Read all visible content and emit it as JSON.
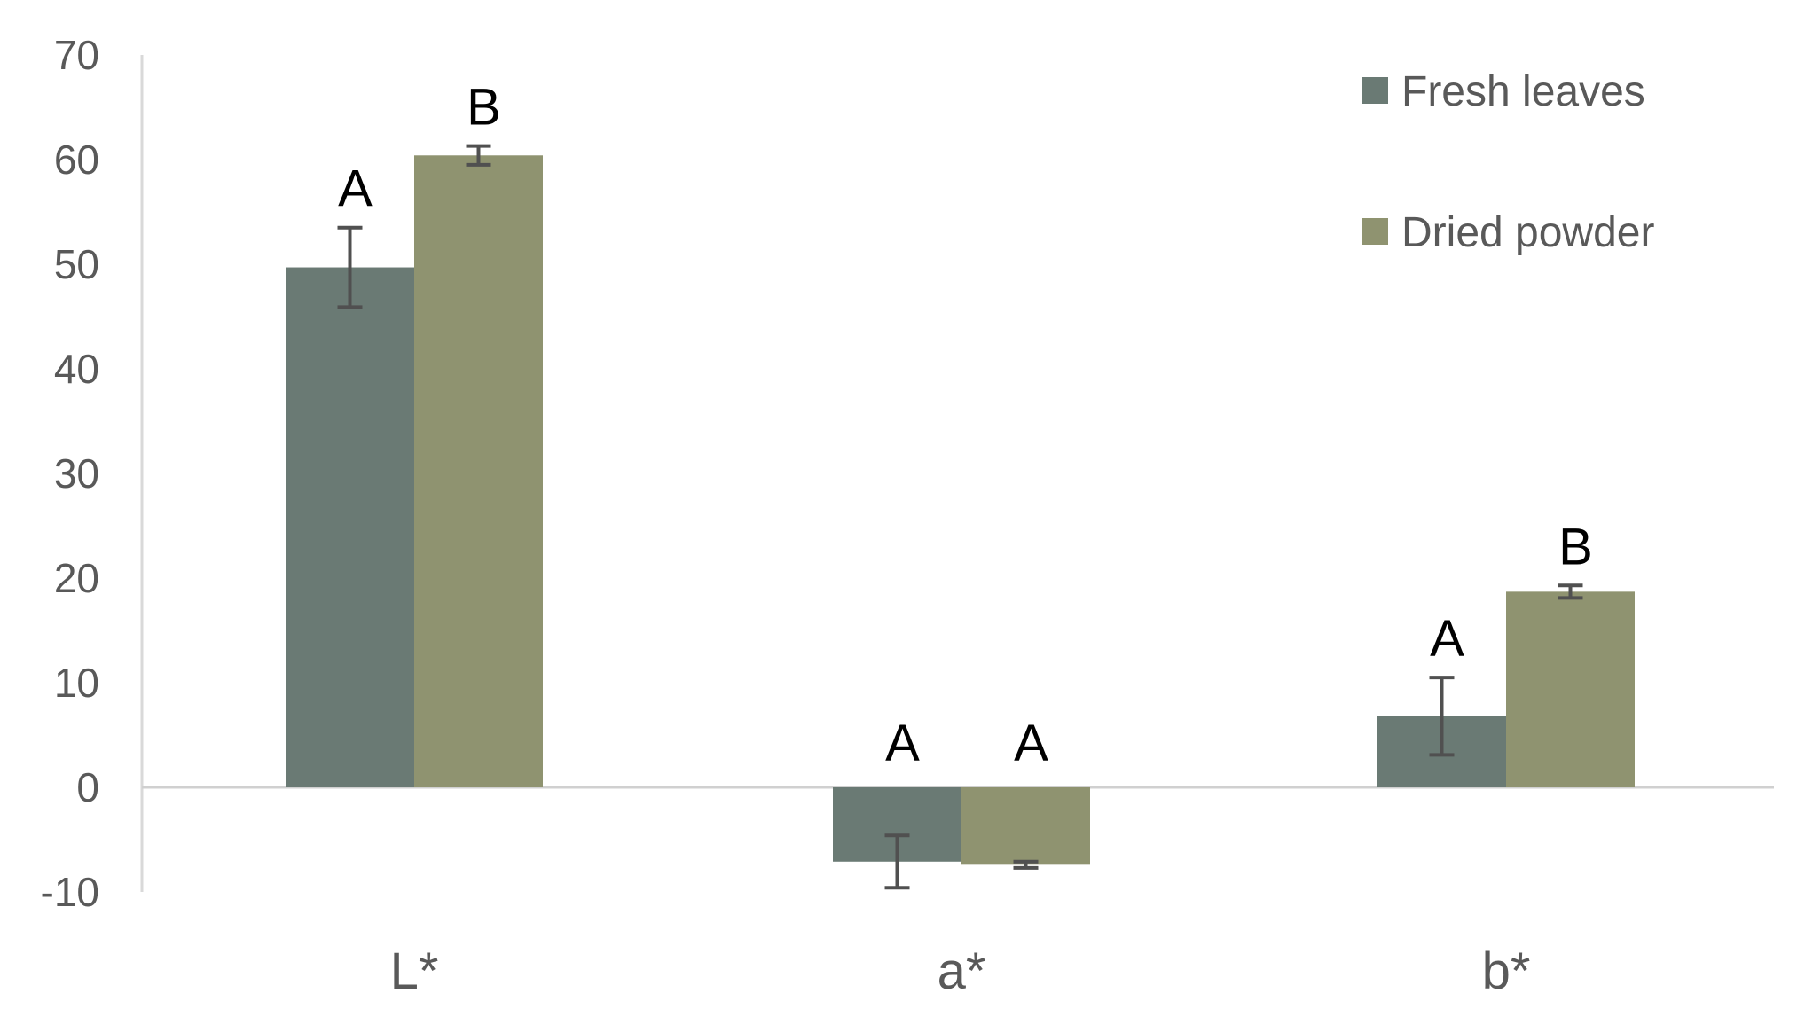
{
  "chart_data": {
    "type": "bar",
    "categories": [
      "L*",
      "a*",
      "b*"
    ],
    "series": [
      {
        "name": "Fresh leaves",
        "color": "#6a7a74",
        "values": [
          49.7,
          -7.1,
          6.8
        ],
        "errors": [
          3.8,
          2.5,
          3.7
        ],
        "letters": [
          "A",
          "A",
          "A"
        ]
      },
      {
        "name": "Dried powder",
        "color": "#8f9370",
        "values": [
          60.4,
          -7.4,
          18.7
        ],
        "errors": [
          0.9,
          0.3,
          0.6
        ],
        "letters": [
          "B",
          "A",
          "B"
        ]
      }
    ],
    "ylim": [
      -10,
      70
    ],
    "yticks": [
      -10,
      0,
      10,
      20,
      30,
      40,
      50,
      60,
      70
    ],
    "grid": false,
    "legend_position": "top-right",
    "title": "",
    "xlabel": "",
    "ylabel": ""
  }
}
